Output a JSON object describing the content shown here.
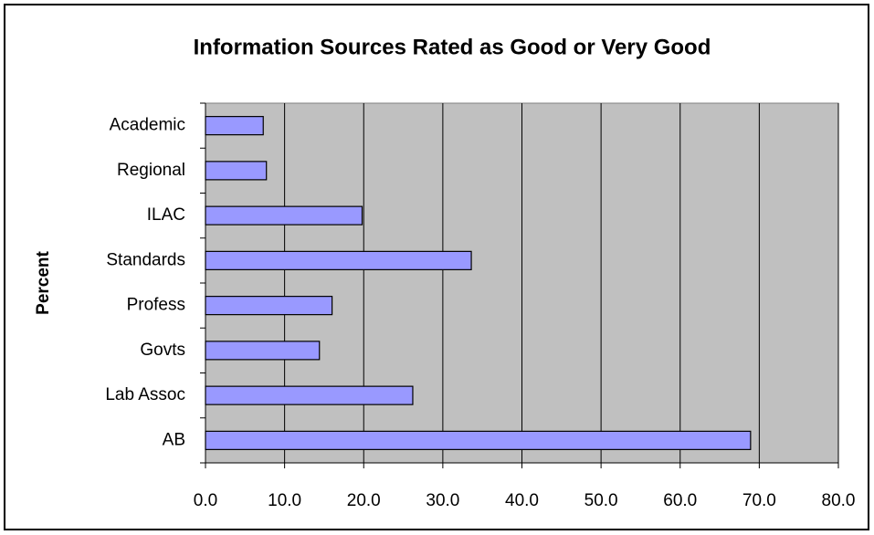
{
  "chart_data": {
    "type": "bar",
    "orientation": "horizontal",
    "title": "Information Sources Rated as Good or Very Good",
    "y_label": "Percent",
    "categories": [
      "Academic",
      "Regional",
      "ILAC",
      "Standards",
      "Profess",
      "Govts",
      "Lab Assoc",
      "AB"
    ],
    "values": [
      7.3,
      7.7,
      19.8,
      33.6,
      16.0,
      14.4,
      26.2,
      68.9
    ],
    "color": "#9999ff",
    "xlim": [
      0,
      80
    ],
    "xticks": [
      {
        "value": 0,
        "label": "0.0"
      },
      {
        "value": 10,
        "label": "10.0"
      },
      {
        "value": 20,
        "label": "20.0"
      },
      {
        "value": 30,
        "label": "30.0"
      },
      {
        "value": 40,
        "label": "40.0"
      },
      {
        "value": 50,
        "label": "50.0"
      },
      {
        "value": 60,
        "label": "60.0"
      },
      {
        "value": 70,
        "label": "70.0"
      },
      {
        "value": 80,
        "label": "80.0"
      }
    ],
    "grid": true
  }
}
